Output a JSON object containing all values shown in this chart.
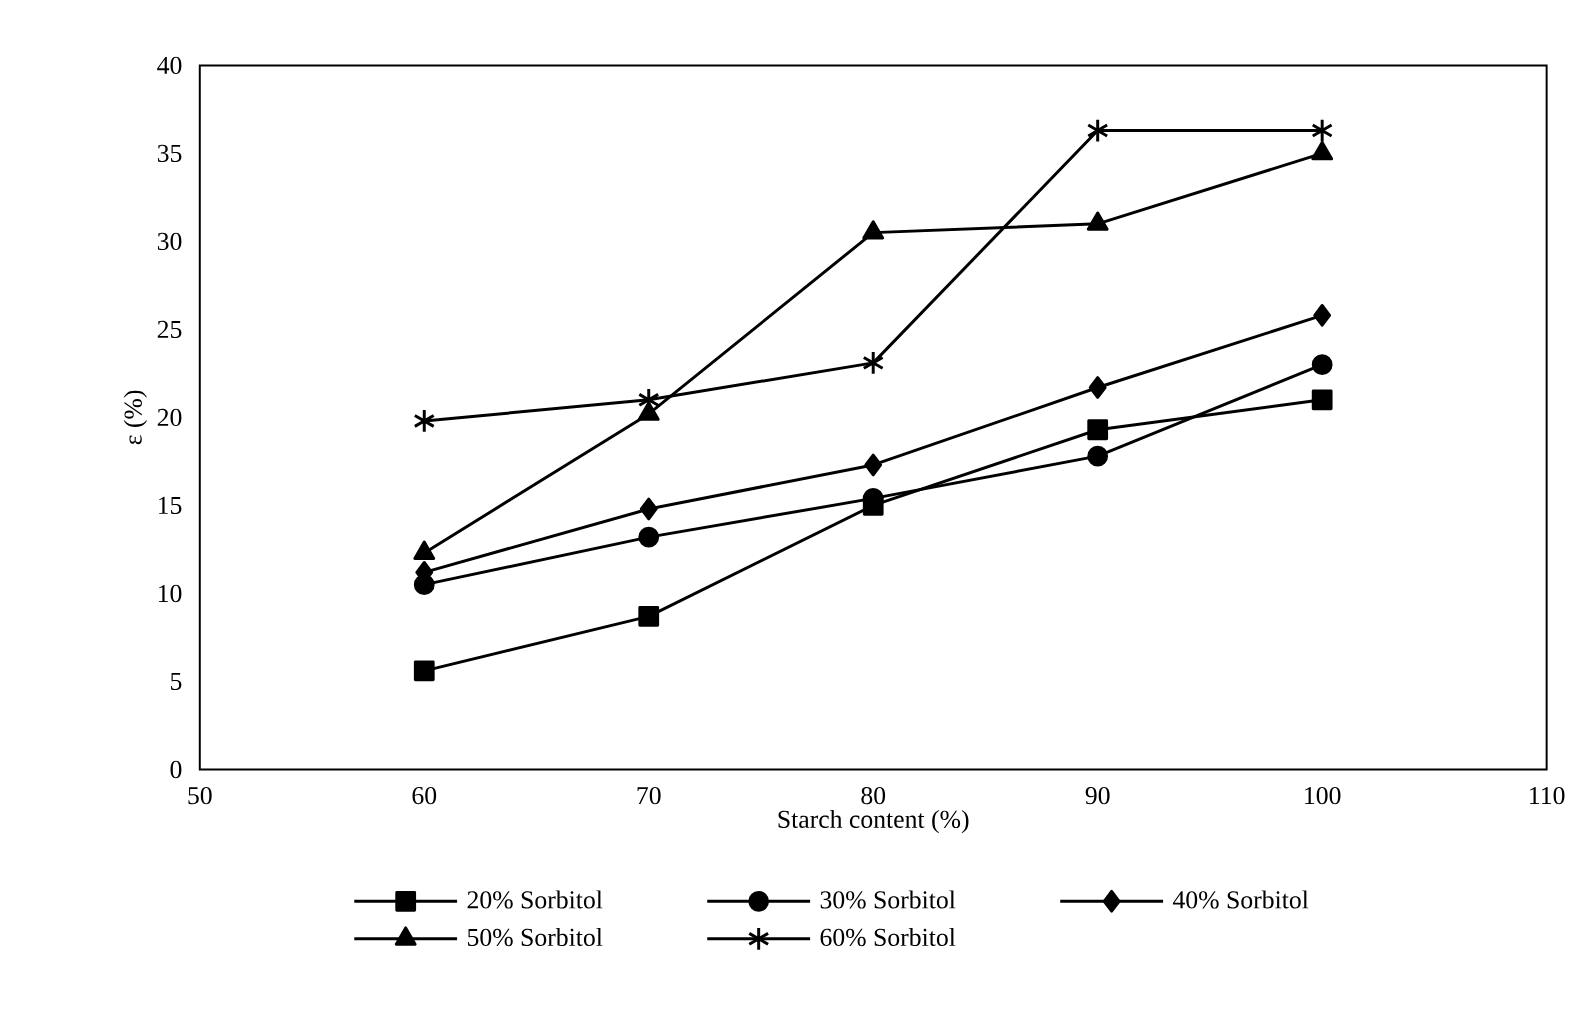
{
  "chart_data": {
    "type": "line",
    "xlabel": "Starch content (%)",
    "ylabel": "ε (%)",
    "x": [
      60,
      70,
      80,
      90,
      100
    ],
    "xlim": [
      50,
      110
    ],
    "xticks": [
      50,
      60,
      70,
      80,
      90,
      100,
      110
    ],
    "ylim": [
      0,
      40
    ],
    "yticks": [
      0,
      5,
      10,
      15,
      20,
      25,
      30,
      35,
      40
    ],
    "grid": false,
    "legend": "bottom",
    "line_style": "solid",
    "series": [
      {
        "name": "20% Sorbitol",
        "color": "#000000",
        "marker": "square",
        "values": [
          5.6,
          8.7,
          15.0,
          19.3,
          21.0
        ]
      },
      {
        "name": "30% Sorbitol",
        "color": "#000000",
        "marker": "circle",
        "values": [
          10.5,
          13.2,
          15.4,
          17.8,
          23.0
        ]
      },
      {
        "name": "40% Sorbitol",
        "color": "#000000",
        "marker": "diamond",
        "values": [
          11.2,
          14.8,
          17.3,
          21.7,
          25.8
        ]
      },
      {
        "name": "50% Sorbitol",
        "color": "#000000",
        "marker": "triangle",
        "values": [
          12.3,
          20.2,
          30.5,
          31.0,
          35.0
        ]
      },
      {
        "name": "60% Sorbitol",
        "color": "#000000",
        "marker": "cross",
        "values": [
          19.8,
          21.0,
          23.1,
          36.3,
          36.3
        ]
      }
    ]
  }
}
